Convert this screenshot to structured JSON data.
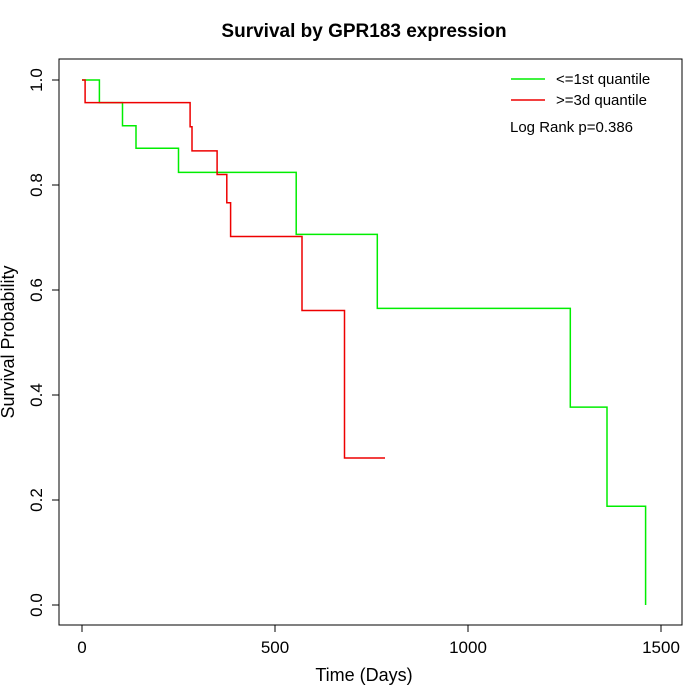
{
  "chart_data": {
    "type": "line",
    "title": "Survival by GPR183 expression",
    "xlabel": "Time (Days)",
    "ylabel": "Survival Probability",
    "xlim": [
      0,
      1500
    ],
    "ylim": [
      0,
      1
    ],
    "x_ticks": [
      "0",
      "500",
      "1000",
      "1500"
    ],
    "y_ticks": [
      "0.0",
      "0.2",
      "0.4",
      "0.6",
      "0.8",
      "1.0"
    ],
    "legend_position": "top-right",
    "grid": false,
    "annotation": "Log Rank p=0.386",
    "series": [
      {
        "name": "<=1st quantile",
        "color": "#00ee00",
        "step": true,
        "points": [
          [
            0,
            1.0
          ],
          [
            45,
            1.0
          ],
          [
            45,
            0.957
          ],
          [
            105,
            0.957
          ],
          [
            105,
            0.913
          ],
          [
            140,
            0.913
          ],
          [
            140,
            0.87
          ],
          [
            250,
            0.87
          ],
          [
            250,
            0.824
          ],
          [
            555,
            0.824
          ],
          [
            555,
            0.706
          ],
          [
            765,
            0.706
          ],
          [
            765,
            0.565
          ],
          [
            1265,
            0.565
          ],
          [
            1265,
            0.377
          ],
          [
            1360,
            0.377
          ],
          [
            1360,
            0.188
          ],
          [
            1460,
            0.188
          ],
          [
            1460,
            0.0
          ]
        ]
      },
      {
        "name": ">=3d quantile",
        "color": "#ee0000",
        "step": true,
        "points": [
          [
            0,
            1.0
          ],
          [
            8,
            1.0
          ],
          [
            8,
            0.957
          ],
          [
            280,
            0.957
          ],
          [
            280,
            0.911
          ],
          [
            285,
            0.911
          ],
          [
            285,
            0.865
          ],
          [
            350,
            0.865
          ],
          [
            350,
            0.82
          ],
          [
            375,
            0.82
          ],
          [
            375,
            0.766
          ],
          [
            385,
            0.766
          ],
          [
            385,
            0.702
          ],
          [
            570,
            0.702
          ],
          [
            570,
            0.561
          ],
          [
            680,
            0.561
          ],
          [
            680,
            0.28
          ],
          [
            785,
            0.28
          ]
        ]
      }
    ]
  }
}
